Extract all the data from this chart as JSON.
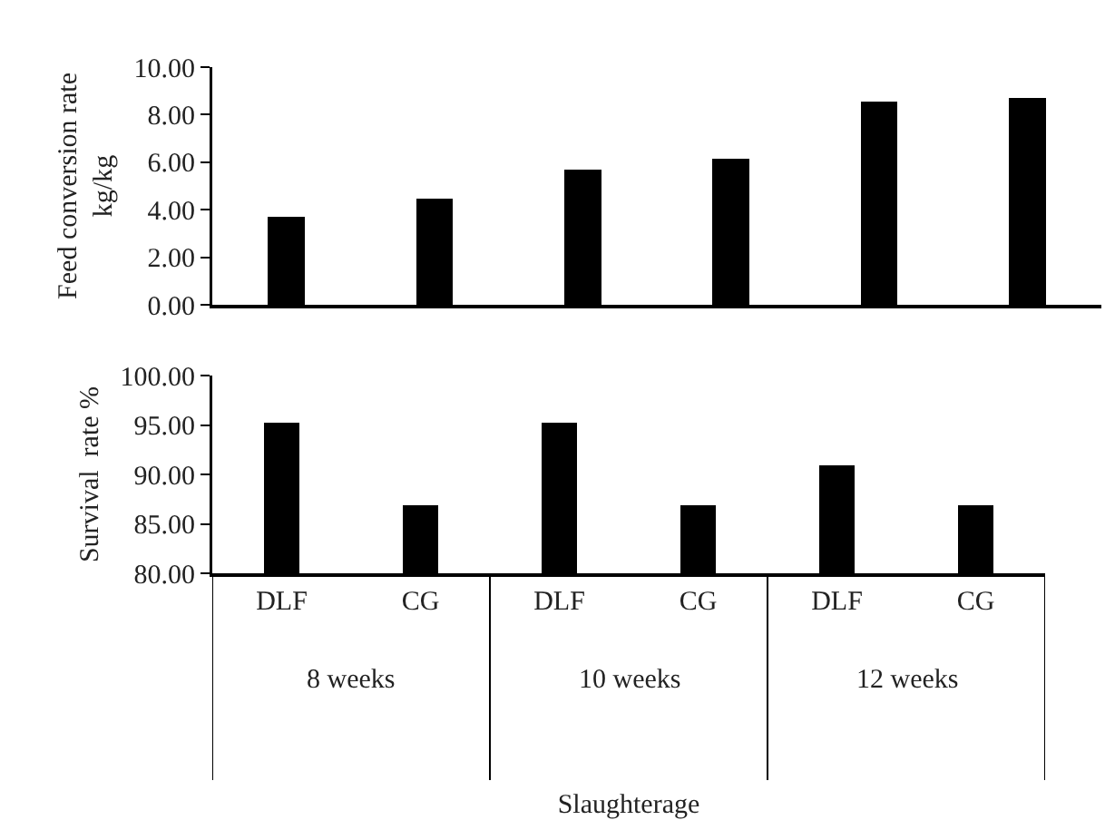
{
  "chart_data": [
    {
      "type": "bar",
      "ylabel": "Feed conversion rate\nkg/kg",
      "categories": [
        null,
        null,
        null,
        null,
        null,
        null
      ],
      "values": [
        3.69,
        4.46,
        5.68,
        6.13,
        8.54,
        8.72
      ],
      "color": "#000000",
      "ylim": [
        0,
        10
      ],
      "yticks": [
        {
          "value": 0,
          "label": "0.00"
        },
        {
          "value": 2,
          "label": "2.00"
        },
        {
          "value": 4,
          "label": "4.00"
        },
        {
          "value": 6,
          "label": "6.00"
        },
        {
          "value": 8,
          "label": "8.00"
        },
        {
          "value": 10,
          "label": "10.00"
        }
      ],
      "grid": false,
      "tick_labels": "y"
    },
    {
      "type": "bar",
      "ylabel": "Survival  rate %",
      "xlabel": "Slaughterage",
      "categories": [
        "DLF",
        "CG",
        "DLF",
        "CG",
        "DLF",
        "CG"
      ],
      "values": [
        95.2,
        86.9,
        95.2,
        86.9,
        90.9,
        86.9
      ],
      "color": "#000000",
      "ylim": [
        80,
        100
      ],
      "yticks": [
        {
          "value": 80,
          "label": "80.00"
        },
        {
          "value": 85,
          "label": "85.00"
        },
        {
          "value": 90,
          "label": "90.00"
        },
        {
          "value": 95,
          "label": "95.00"
        },
        {
          "value": 100,
          "label": "100.00"
        }
      ],
      "grid": false,
      "annotations": [
        "8 weeks",
        "10 weeks",
        "12 weeks"
      ]
    }
  ]
}
